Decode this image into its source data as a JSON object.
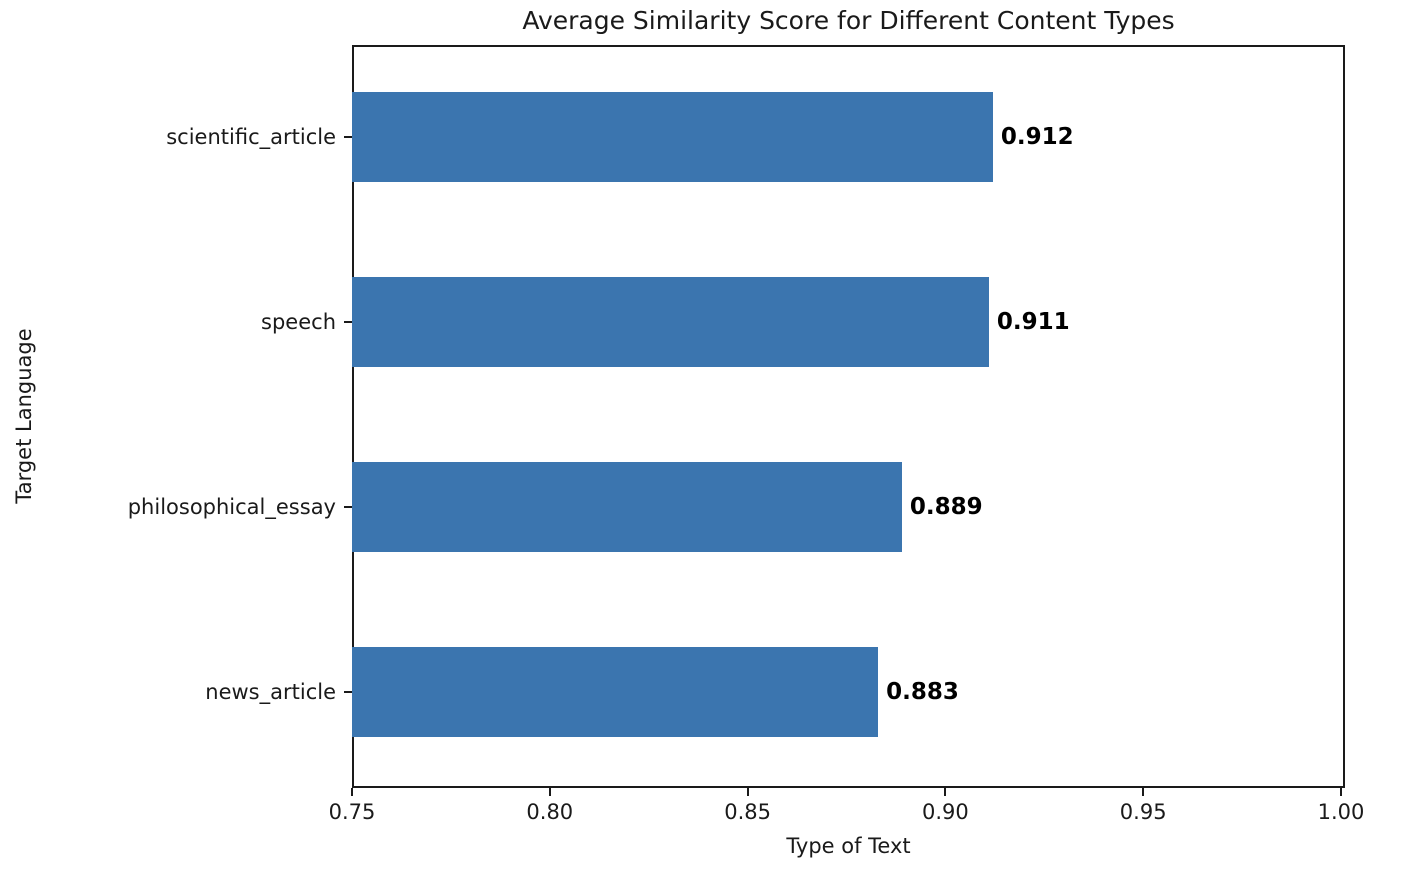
{
  "chart_data": {
    "type": "bar",
    "orientation": "horizontal",
    "title": "Average Similarity Score for Different Content Types",
    "xlabel": "Type of Text",
    "ylabel": "Target Language",
    "categories": [
      "scientific_article",
      "speech",
      "philosophical_essay",
      "news_article"
    ],
    "values": [
      0.912,
      0.911,
      0.889,
      0.883
    ],
    "value_labels": [
      "0.912",
      "0.911",
      "0.889",
      "0.883"
    ],
    "xlim": [
      0.75,
      1.0
    ],
    "xticks": [
      0.75,
      0.8,
      0.85,
      0.9,
      0.95,
      1.0
    ],
    "xtick_labels": [
      "0.75",
      "0.80",
      "0.85",
      "0.90",
      "0.95",
      "1.00"
    ],
    "bar_color": "#3b75af",
    "axes_color": "#1a1a1a",
    "grid": false,
    "legend": "empty box, top-right inside axes"
  }
}
